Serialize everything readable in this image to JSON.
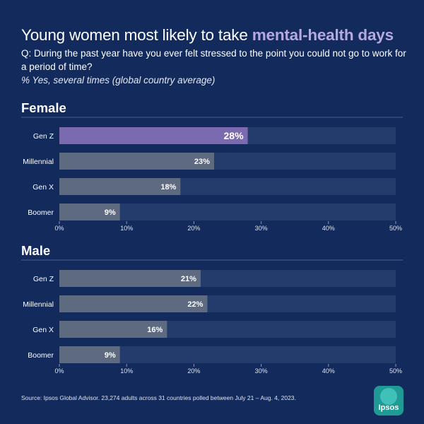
{
  "header": {
    "title_main": "Young women most likely to take ",
    "title_accent": "mental-health days",
    "question": "Q: During the past year have you ever felt stressed to the point you could not go to work for a period of time?",
    "note": "% Yes, several times (global country average)"
  },
  "colors": {
    "background": "#122a5c",
    "track": "#243c6c",
    "bar": "#5d6a80",
    "highlight": "#7c6ab0",
    "accent_text": "#b6a9e0",
    "logo": "#1f9a94"
  },
  "chart_data": [
    {
      "type": "bar",
      "orientation": "horizontal",
      "title": "Female",
      "categories": [
        "Gen Z",
        "Millennial",
        "Gen X",
        "Boomer"
      ],
      "values": [
        28,
        23,
        18,
        9
      ],
      "labels": [
        "28%",
        "23%",
        "18%",
        "9%"
      ],
      "highlight_index": 0,
      "xlim": [
        0,
        50
      ],
      "ticks": [
        0,
        10,
        20,
        30,
        40,
        50
      ],
      "tick_labels": [
        "0%",
        "10%",
        "20%",
        "30%",
        "40%",
        "50%"
      ]
    },
    {
      "type": "bar",
      "orientation": "horizontal",
      "title": "Male",
      "categories": [
        "Gen Z",
        "Millennial",
        "Gen X",
        "Boomer"
      ],
      "values": [
        21,
        22,
        16,
        9
      ],
      "labels": [
        "21%",
        "22%",
        "16%",
        "9%"
      ],
      "highlight_index": -1,
      "xlim": [
        0,
        50
      ],
      "ticks": [
        0,
        10,
        20,
        30,
        40,
        50
      ],
      "tick_labels": [
        "0%",
        "10%",
        "20%",
        "30%",
        "40%",
        "50%"
      ]
    }
  ],
  "footer": {
    "source": "Source: Ipsos Global Advisor. 23,274 adults across 31 countries polled between July 21 – Aug. 4, 2023.",
    "logo_text": "Ipsos"
  }
}
